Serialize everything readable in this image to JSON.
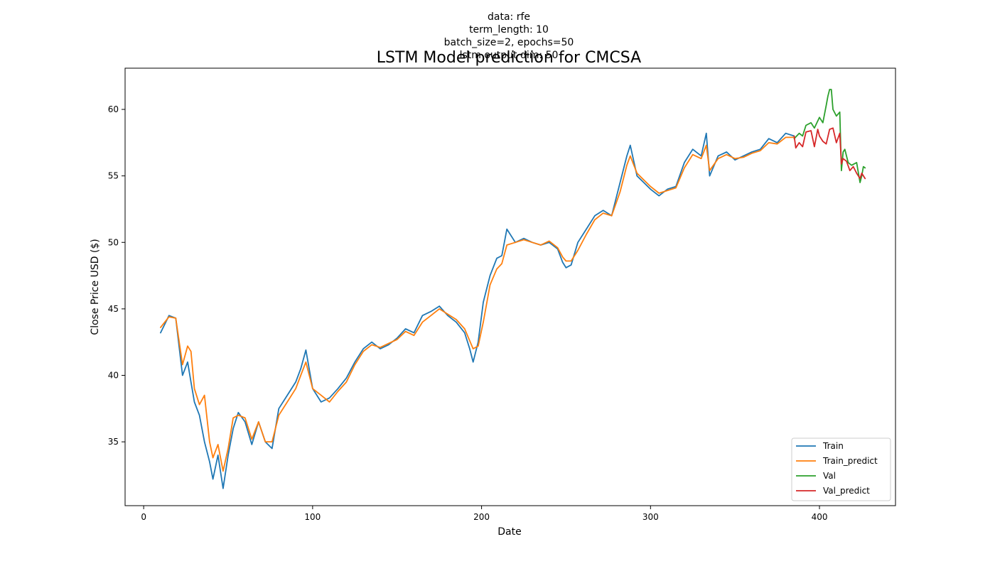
{
  "chart_data": {
    "type": "line",
    "subtitle_lines": [
      "data: rfe",
      "term_length: 10",
      "batch_size=2, epochs=50",
      "lstm output dim: 50"
    ],
    "title": "LSTM Model prediction for CMCSA",
    "xlabel": "Date",
    "ylabel": "Close Price USD ($)",
    "xlim": [
      -11,
      445
    ],
    "ylim": [
      30.2,
      63.1
    ],
    "xticks": [
      0,
      100,
      200,
      300,
      400
    ],
    "yticks": [
      35,
      40,
      45,
      50,
      55,
      60
    ],
    "grid": false,
    "legend_position": "lower right",
    "series": [
      {
        "name": "Train",
        "color": "#1f77b4",
        "x": [
          10,
          15,
          19,
          23,
          26,
          28,
          30,
          33,
          36,
          39,
          41,
          44,
          47,
          50,
          53,
          56,
          60,
          64,
          68,
          72,
          76,
          80,
          85,
          90,
          93,
          96,
          100,
          105,
          110,
          115,
          120,
          125,
          130,
          135,
          140,
          145,
          150,
          155,
          160,
          165,
          170,
          175,
          180,
          185,
          190,
          193,
          195,
          198,
          201,
          205,
          209,
          212,
          215,
          220,
          225,
          230,
          235,
          240,
          245,
          248,
          250,
          253,
          257,
          262,
          267,
          272,
          277,
          282,
          286,
          288,
          292,
          296,
          300,
          305,
          310,
          315,
          320,
          325,
          330,
          333,
          335,
          340,
          345,
          350,
          355,
          360,
          365,
          370,
          375,
          380,
          385
        ],
        "y": [
          43.2,
          44.5,
          44.3,
          40.0,
          41.0,
          39.5,
          38.0,
          37.0,
          35.0,
          33.5,
          32.2,
          34.0,
          31.5,
          34.0,
          36.0,
          37.2,
          36.5,
          34.8,
          36.5,
          35.0,
          34.5,
          37.5,
          38.5,
          39.5,
          40.5,
          41.9,
          39.0,
          38.0,
          38.3,
          39.0,
          39.8,
          41.0,
          42.0,
          42.5,
          42.0,
          42.3,
          42.8,
          43.5,
          43.2,
          44.5,
          44.8,
          45.2,
          44.5,
          44.0,
          43.2,
          42.0,
          41.0,
          42.5,
          45.5,
          47.5,
          48.8,
          49.0,
          51.0,
          50.0,
          50.3,
          50.0,
          49.8,
          50.0,
          49.5,
          48.5,
          48.1,
          48.3,
          50.0,
          51.0,
          52.0,
          52.4,
          52.0,
          54.5,
          56.5,
          57.3,
          55.0,
          54.5,
          54.0,
          53.5,
          54.0,
          54.2,
          56.0,
          57.0,
          56.5,
          58.2,
          55.0,
          56.5,
          56.8,
          56.2,
          56.5,
          56.8,
          57.0,
          57.8,
          57.5,
          58.2,
          58.0
        ]
      },
      {
        "name": "Train_predict",
        "color": "#ff7f0e",
        "x": [
          10,
          15,
          19,
          23,
          26,
          28,
          30,
          33,
          36,
          39,
          41,
          44,
          47,
          50,
          53,
          56,
          60,
          64,
          68,
          72,
          76,
          80,
          85,
          90,
          93,
          96,
          100,
          105,
          110,
          115,
          120,
          125,
          130,
          135,
          140,
          145,
          150,
          155,
          160,
          165,
          170,
          175,
          180,
          185,
          190,
          193,
          195,
          198,
          201,
          205,
          209,
          212,
          215,
          220,
          225,
          230,
          235,
          240,
          245,
          248,
          250,
          253,
          257,
          262,
          267,
          272,
          277,
          282,
          286,
          288,
          292,
          296,
          300,
          305,
          310,
          315,
          320,
          325,
          330,
          333,
          335,
          340,
          345,
          350,
          355,
          360,
          365,
          370,
          375,
          380,
          385
        ],
        "y": [
          43.6,
          44.4,
          44.3,
          40.8,
          42.2,
          41.8,
          39.0,
          37.8,
          38.5,
          35.0,
          33.8,
          34.8,
          32.8,
          34.5,
          36.8,
          37.0,
          36.8,
          35.2,
          36.5,
          35.0,
          35.0,
          37.0,
          38.0,
          39.0,
          40.0,
          41.0,
          39.0,
          38.5,
          38.0,
          38.8,
          39.5,
          40.8,
          41.8,
          42.3,
          42.1,
          42.4,
          42.7,
          43.3,
          43.0,
          44.0,
          44.5,
          45.0,
          44.6,
          44.2,
          43.5,
          42.6,
          42.0,
          42.2,
          44.0,
          46.8,
          48.0,
          48.4,
          49.8,
          50.0,
          50.2,
          50.0,
          49.8,
          50.1,
          49.6,
          48.9,
          48.6,
          48.6,
          49.4,
          50.6,
          51.7,
          52.2,
          52.0,
          53.8,
          55.8,
          56.5,
          55.2,
          54.7,
          54.2,
          53.7,
          53.9,
          54.1,
          55.6,
          56.6,
          56.3,
          57.3,
          55.4,
          56.3,
          56.6,
          56.3,
          56.4,
          56.7,
          56.9,
          57.5,
          57.4,
          57.9,
          57.9
        ]
      },
      {
        "name": "Val",
        "color": "#2ca02c",
        "x": [
          385,
          388,
          390,
          392,
          395,
          397,
          400,
          402,
          404,
          405,
          406,
          407,
          408,
          410,
          412,
          413,
          414,
          415,
          417,
          419,
          422,
          424,
          425,
          426,
          427
        ],
        "y": [
          57.8,
          58.2,
          58.0,
          58.8,
          59.0,
          58.6,
          59.4,
          59.0,
          60.3,
          61.0,
          61.5,
          61.5,
          60.0,
          59.5,
          59.8,
          55.4,
          56.8,
          57.0,
          56.0,
          55.8,
          56.0,
          54.5,
          55.0,
          55.7,
          55.6
        ]
      },
      {
        "name": "Val_predict",
        "color": "#d62728",
        "x": [
          385,
          386,
          388,
          390,
          392,
          395,
          397,
          399,
          400,
          402,
          404,
          406,
          408,
          410,
          412,
          413,
          414,
          416,
          418,
          420,
          422,
          424,
          425,
          427
        ],
        "y": [
          58.0,
          57.1,
          57.5,
          57.2,
          58.3,
          58.4,
          57.2,
          58.5,
          58.0,
          57.6,
          57.4,
          58.5,
          58.6,
          57.5,
          58.2,
          55.9,
          56.3,
          56.1,
          55.4,
          55.7,
          55.2,
          54.8,
          55.2,
          54.8
        ]
      }
    ]
  }
}
